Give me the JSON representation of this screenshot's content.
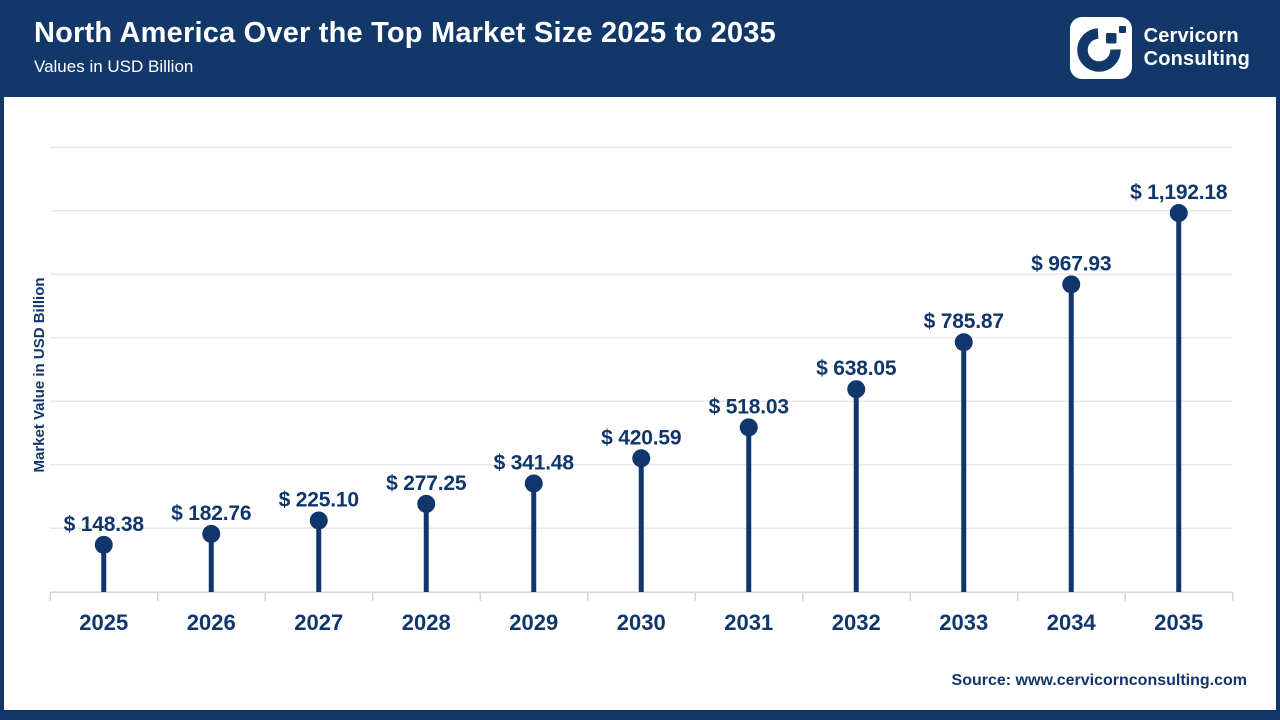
{
  "header": {
    "title": "North America Over the Top Market Size 2025 to 2035",
    "subtitle": "Values in USD Billion",
    "logo_line1": "Cervicorn",
    "logo_line2": "Consulting"
  },
  "colors": {
    "navy": "#123769",
    "chart_ink": "#11366b",
    "gridline": "#e9e9e9",
    "axis_line": "#d6d6d6",
    "white": "#ffffff"
  },
  "chart_data": {
    "type": "bar",
    "variant": "lollipop",
    "title": "North America Over the Top Market Size 2025 to 2035",
    "categories": [
      "2025",
      "2026",
      "2027",
      "2028",
      "2029",
      "2030",
      "2031",
      "2032",
      "2033",
      "2034",
      "2035"
    ],
    "values": [
      148.38,
      182.76,
      225.1,
      277.25,
      341.48,
      420.59,
      518.03,
      638.05,
      785.87,
      967.93,
      1192.18
    ],
    "value_prefix": "$ ",
    "xlabel": "",
    "ylabel": "Market Value in USD Billion",
    "ylim": [
      0,
      1400
    ],
    "gridline_step": 200,
    "grid": true,
    "legend": "none"
  },
  "footer": {
    "source": "Source: www.cervicornconsulting.com"
  }
}
